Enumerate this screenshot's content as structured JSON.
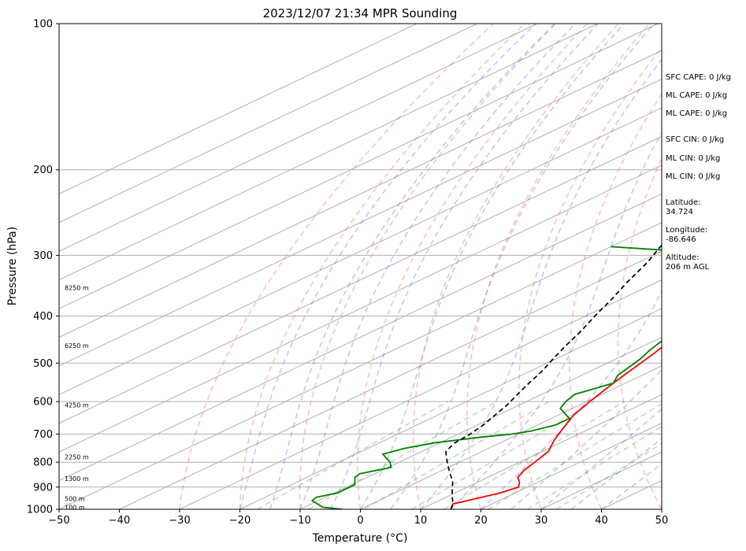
{
  "chart_data": {
    "type": "line",
    "chart_kind": "skew-t log-p sounding",
    "title": "2023/12/07 21:34 MPR Sounding",
    "xlabel": "Temperature (°C)",
    "ylabel": "Pressure (hPa)",
    "xlim": [
      -50,
      50
    ],
    "ylim": [
      1000,
      100
    ],
    "y_scale": "log",
    "x_ticks": [
      -50,
      -40,
      -30,
      -20,
      -10,
      0,
      10,
      20,
      30,
      40,
      50
    ],
    "y_ticks": [
      1000,
      900,
      800,
      700,
      600,
      500,
      400,
      300,
      200,
      100
    ],
    "grid": "horizontal isobars + skewed isotherms",
    "background_lines": {
      "dry_adiabats": "red dashed",
      "moist_adiabats": "blue dashed",
      "mixing_ratio": "green dashed"
    },
    "height_labels": [
      {
        "p": 350,
        "text": "8250 m"
      },
      {
        "p": 460,
        "text": "6250 m"
      },
      {
        "p": 610,
        "text": "4250 m"
      },
      {
        "p": 780,
        "text": "2250 m"
      },
      {
        "p": 865,
        "text": "1300 m"
      },
      {
        "p": 950,
        "text": "500 m"
      },
      {
        "p": 990,
        "text": "100 m"
      }
    ],
    "series": [
      {
        "color": "#ff0000",
        "style": "solid",
        "points": [
          [
            15.0,
            1000
          ],
          [
            13.5,
            975
          ],
          [
            15.5,
            950
          ],
          [
            17.5,
            925
          ],
          [
            18.5,
            900
          ],
          [
            17.0,
            880
          ],
          [
            15.0,
            860
          ],
          [
            13.5,
            830
          ],
          [
            12.5,
            800
          ],
          [
            11.0,
            760
          ],
          [
            8.0,
            720
          ],
          [
            6.0,
            690
          ],
          [
            2.5,
            640
          ],
          [
            0.5,
            600
          ],
          [
            -1.5,
            560
          ],
          [
            -3.0,
            530
          ],
          [
            -5.5,
            480
          ],
          [
            -8.0,
            440
          ],
          [
            -10.5,
            400
          ],
          [
            -13.5,
            370
          ],
          [
            -17.0,
            330
          ],
          [
            -20.0,
            300
          ],
          [
            -21.5,
            290
          ],
          [
            -23.0,
            280
          ],
          [
            -24.5,
            270
          ],
          [
            -25.5,
            265
          ]
        ]
      },
      {
        "color": "#008000",
        "style": "solid",
        "points": [
          [
            -3.0,
            1000
          ],
          [
            -7.0,
            990
          ],
          [
            -11.0,
            960
          ],
          [
            -11.5,
            945
          ],
          [
            -9.5,
            925
          ],
          [
            -9.5,
            890
          ],
          [
            -12.0,
            860
          ],
          [
            -12.5,
            845
          ],
          [
            -9.5,
            820
          ],
          [
            -11.5,
            800
          ],
          [
            -15.5,
            770
          ],
          [
            -14.0,
            750
          ],
          [
            -11.0,
            730
          ],
          [
            -5.0,
            710
          ],
          [
            -1.0,
            700
          ],
          [
            1.0,
            690
          ],
          [
            3.0,
            670
          ],
          [
            3.0,
            650
          ],
          [
            -2.0,
            620
          ],
          [
            -3.5,
            600
          ],
          [
            -4.5,
            580
          ],
          [
            -2.0,
            550
          ],
          [
            -4.0,
            530
          ],
          [
            -6.0,
            490
          ],
          [
            -7.5,
            470
          ],
          [
            -9.0,
            445
          ],
          [
            -10.0,
            420
          ],
          [
            -11.5,
            400
          ],
          [
            -14.0,
            385
          ],
          [
            -17.0,
            375
          ],
          [
            -19.0,
            360
          ],
          [
            -21.5,
            330
          ],
          [
            -27.0,
            315
          ],
          [
            -24.0,
            305
          ],
          [
            -35.0,
            295
          ],
          [
            -50,
            288
          ]
        ]
      },
      {
        "color": "#000000",
        "style": "dashed",
        "points": [
          [
            15.0,
            1000
          ],
          [
            13.5,
            975
          ],
          [
            11.5,
            950
          ],
          [
            9.5,
            925
          ],
          [
            7.5,
            900
          ],
          [
            5.5,
            875
          ],
          [
            3.0,
            850
          ],
          [
            0.5,
            825
          ],
          [
            -2.0,
            800
          ],
          [
            -4.0,
            780
          ],
          [
            -6.0,
            760
          ],
          [
            -7.5,
            730
          ],
          [
            -8.0,
            700
          ],
          [
            -9.0,
            670
          ],
          [
            -10.5,
            640
          ],
          [
            -12.0,
            610
          ],
          [
            -14.0,
            580
          ],
          [
            -16.0,
            550
          ],
          [
            -18.0,
            520
          ],
          [
            -20.5,
            490
          ],
          [
            -23.0,
            460
          ],
          [
            -25.5,
            430
          ],
          [
            -28.5,
            400
          ],
          [
            -31.5,
            370
          ],
          [
            -35.0,
            340
          ],
          [
            -38.5,
            310
          ],
          [
            -41.5,
            290
          ],
          [
            -44.5,
            270
          ]
        ]
      }
    ]
  },
  "side_panel": {
    "sfc_cape": "SFC CAPE: 0 J/kg",
    "ml_cape_1": "ML CAPE: 0 J/kg",
    "ml_cape_2": "ML CAPE: 0 J/kg",
    "sfc_cin": "SFC CIN: 0 J/kg",
    "ml_cin_1": "ML CIN: 0 J/kg",
    "ml_cin_2": "ML CIN: 0 J/kg",
    "latitude_label": "Latitude:",
    "latitude_value": "34.724",
    "longitude_label": "Longitude:",
    "longitude_value": "-86.646",
    "altitude_label": "Altitude:",
    "altitude_value": "206 m AGL"
  }
}
